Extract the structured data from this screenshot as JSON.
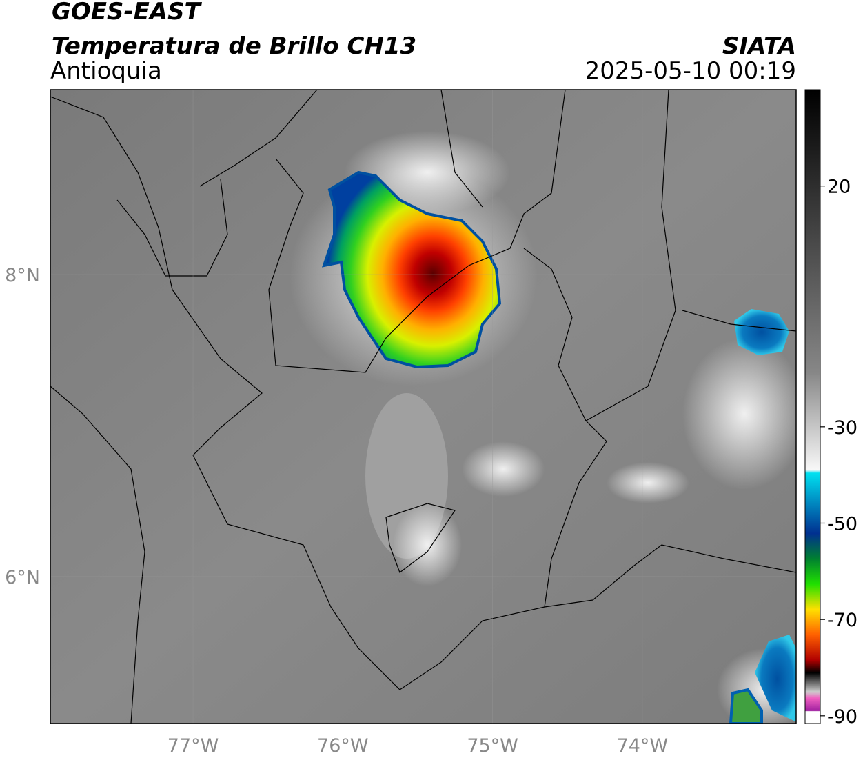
{
  "header": {
    "title": "GOES-EAST",
    "subtitle": "Temperatura de Brillo CH13",
    "region": "Antioquia",
    "source": "SIATA",
    "datetime": "2025-05-10 00:19"
  },
  "map": {
    "lon_range": [
      -77.953,
      -72.973
    ],
    "lat_range": [
      9.224,
      5.027
    ],
    "lon_ticks": [
      {
        "value": -77,
        "label": "77°W"
      },
      {
        "value": -76,
        "label": "76°W"
      },
      {
        "value": -75,
        "label": "75°W"
      },
      {
        "value": -74,
        "label": "74°W"
      }
    ],
    "lat_ticks": [
      {
        "value": 8,
        "label": "8°N"
      },
      {
        "value": 6,
        "label": "6°N"
      }
    ]
  },
  "colorbar": {
    "range": [
      40,
      -91.6
    ],
    "ticks": [
      20,
      -30,
      -50,
      -70,
      -90
    ]
  }
}
